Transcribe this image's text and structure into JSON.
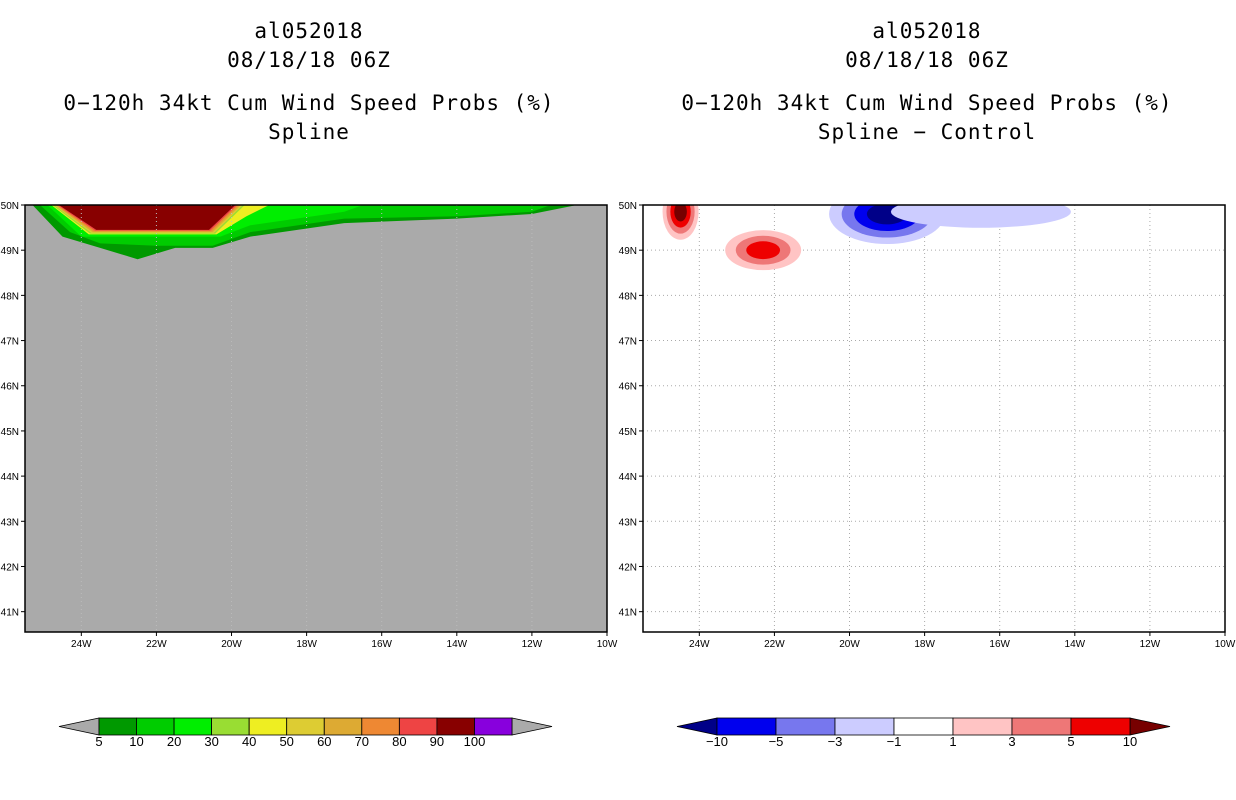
{
  "left": {
    "storm_id": "al052018",
    "datetime": "08/18/18 06Z",
    "title": "0−120h 34kt Cum Wind Speed Probs (%)",
    "subtitle": "Spline",
    "background_color": "#aaaaaa",
    "colorbar": {
      "labels": [
        "5",
        "10",
        "20",
        "30",
        "40",
        "50",
        "60",
        "70",
        "80",
        "90",
        "100"
      ],
      "colors": [
        "#009900",
        "#00cc00",
        "#00ee00",
        "#99dd33",
        "#eeee22",
        "#ddcc33",
        "#ddaa33",
        "#ee8833",
        "#ee4444",
        "#880000",
        "#8800dd"
      ],
      "end_color": "#aaaaaa"
    }
  },
  "right": {
    "storm_id": "al052018",
    "datetime": "08/18/18 06Z",
    "title": "0−120h 34kt Cum Wind Speed Probs (%)",
    "subtitle": "Spline − Control",
    "colorbar": {
      "labels": [
        "−10",
        "−5",
        "−3",
        "−1",
        "1",
        "3",
        "5",
        "10"
      ],
      "colors": [
        "#0000ee",
        "#7777ee",
        "#ccccff",
        "#ffffff",
        "#ffc4c4",
        "#ee7777",
        "#ee0000"
      ],
      "end_low": "#000088",
      "end_high": "#770000"
    }
  },
  "chart_data": [
    {
      "type": "heatmap",
      "title": "0−120h 34kt Cum Wind Speed Probs (%)",
      "subtitle": "Spline",
      "x_ticks": [
        "24W",
        "22W",
        "20W",
        "18W",
        "16W",
        "14W",
        "12W",
        "10W"
      ],
      "y_ticks": [
        "41N",
        "42N",
        "43N",
        "44N",
        "45N",
        "46N",
        "47N",
        "48N",
        "49N",
        "50N"
      ],
      "xlim": [
        -25.5,
        -10
      ],
      "ylim": [
        40.55,
        50
      ],
      "levels": [
        5,
        10,
        20,
        30,
        40,
        50,
        60,
        70,
        80,
        90,
        100
      ],
      "regions": [
        {
          "min_level": 5,
          "lon": [
            -25.3,
            -24.5,
            -23.5,
            -22.5,
            -21.5,
            -20.5,
            -19.5,
            -17.0,
            -14.0,
            -12.0,
            -10.8
          ],
          "lat_bottom": [
            50.0,
            49.3,
            49.05,
            48.8,
            49.05,
            49.05,
            49.3,
            49.6,
            49.7,
            49.8,
            50.0
          ]
        },
        {
          "min_level": 10,
          "lon": [
            -25.1,
            -24.3,
            -23.5,
            -22.0,
            -20.5,
            -19.5,
            -17.0,
            -14.0,
            -12.0,
            -11.5
          ],
          "lat_bottom": [
            50.0,
            49.4,
            49.15,
            49.1,
            49.1,
            49.4,
            49.7,
            49.75,
            49.85,
            50.0
          ]
        },
        {
          "min_level": 20,
          "lon": [
            -24.9,
            -24.0,
            -20.3,
            -19.5,
            -17.0,
            -16.5
          ],
          "lat_bottom": [
            50.0,
            49.3,
            49.3,
            49.55,
            49.85,
            50.0
          ]
        },
        {
          "min_level": 40,
          "lon": [
            -24.8,
            -23.8,
            -20.4,
            -19.6,
            -19.0
          ],
          "lat_bottom": [
            50.0,
            49.35,
            49.35,
            49.75,
            50.0
          ]
        },
        {
          "min_level": 90,
          "lon": [
            -24.6,
            -23.6,
            -20.6,
            -19.9
          ],
          "lat_bottom": [
            50.0,
            49.45,
            49.45,
            50.0
          ]
        }
      ]
    },
    {
      "type": "heatmap",
      "title": "0−120h 34kt Cum Wind Speed Probs (%)",
      "subtitle": "Spline − Control",
      "x_ticks": [
        "24W",
        "22W",
        "20W",
        "18W",
        "16W",
        "14W",
        "12W",
        "10W"
      ],
      "y_ticks": [
        "41N",
        "42N",
        "43N",
        "44N",
        "45N",
        "46N",
        "47N",
        "48N",
        "49N",
        "50N"
      ],
      "xlim": [
        -25.5,
        -10
      ],
      "ylim": [
        40.55,
        50
      ],
      "levels": [
        -10,
        -5,
        -3,
        -1,
        1,
        3,
        5,
        10
      ],
      "features": [
        {
          "sign": "positive",
          "center_lon": -24.5,
          "center_lat": 49.85,
          "peak": 10
        },
        {
          "sign": "positive",
          "center_lon": -22.3,
          "center_lat": 49.0,
          "peak": 5
        },
        {
          "sign": "negative",
          "center_lon": -19.0,
          "center_lat": 49.8,
          "peak": -10
        },
        {
          "sign": "negative",
          "center_lon": -16.5,
          "center_lat": 49.85,
          "peak": -3
        }
      ]
    }
  ]
}
